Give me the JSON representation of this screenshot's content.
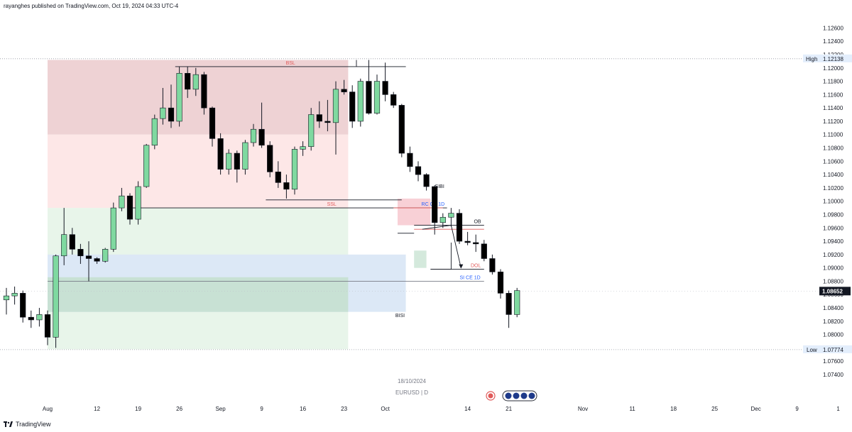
{
  "header": {
    "published": "rayanghes published on TradingView.com, Oct 19, 2024 04:33 UTC-4"
  },
  "footer": {
    "brand": "TradingView",
    "logo_icon": "tradingview-logo-icon"
  },
  "watermark": {
    "date": "18/10/2024",
    "symbol": "EURUSD | D"
  },
  "colors": {
    "up": "#7fd9a0",
    "down": "#000000",
    "price_badge": "#131722",
    "premium_dark": "#eed2d4",
    "premium_light": "#fde7e7",
    "discount_light": "#e8f5ea",
    "discount_dark": "#d8ece0",
    "bisi": "#dce8f6"
  },
  "chart_data": {
    "type": "candlestick",
    "symbol": "EURUSD",
    "timeframe": "D",
    "y_axis": {
      "ticks": [
        "1.12600",
        "1.12400",
        "1.12200",
        "1.12000",
        "1.11800",
        "1.11600",
        "1.11400",
        "1.11200",
        "1.11000",
        "1.10800",
        "1.10600",
        "1.10400",
        "1.10200",
        "1.10000",
        "1.09800",
        "1.09600",
        "1.09400",
        "1.09200",
        "1.09000",
        "1.08800",
        "1.08600",
        "1.08400",
        "1.08200",
        "1.08000",
        "1.07800",
        "1.07600",
        "1.07400"
      ],
      "range": [
        1.074,
        1.127
      ]
    },
    "x_axis": {
      "ticks": [
        {
          "label": "Aug",
          "index": 5
        },
        {
          "label": "12",
          "index": 11
        },
        {
          "label": "19",
          "index": 16
        },
        {
          "label": "26",
          "index": 21
        },
        {
          "label": "Sep",
          "index": 26
        },
        {
          "label": "9",
          "index": 31
        },
        {
          "label": "16",
          "index": 36
        },
        {
          "label": "23",
          "index": 41
        },
        {
          "label": "Oct",
          "index": 46
        },
        {
          "label": "14",
          "index": 56
        },
        {
          "label": "21",
          "index": 61
        },
        {
          "label": "Nov",
          "index": 70
        },
        {
          "label": "11",
          "index": 76
        },
        {
          "label": "18",
          "index": 81
        },
        {
          "label": "25",
          "index": 86
        },
        {
          "label": "Dec",
          "index": 91
        },
        {
          "label": "9",
          "index": 96
        },
        {
          "label": "1",
          "index": 101
        }
      ]
    },
    "candles": [
      {
        "o": 1.0852,
        "h": 1.087,
        "l": 1.083,
        "c": 1.0858
      },
      {
        "o": 1.0858,
        "h": 1.0872,
        "l": 1.0845,
        "c": 1.0862
      },
      {
        "o": 1.0862,
        "h": 1.0866,
        "l": 1.0818,
        "c": 1.0826
      },
      {
        "o": 1.0826,
        "h": 1.0836,
        "l": 1.081,
        "c": 1.0822
      },
      {
        "o": 1.0822,
        "h": 1.084,
        "l": 1.0812,
        "c": 1.083
      },
      {
        "o": 1.083,
        "h": 1.0836,
        "l": 1.0784,
        "c": 1.0796
      },
      {
        "o": 1.0796,
        "h": 1.092,
        "l": 1.078,
        "c": 1.0918
      },
      {
        "o": 1.0918,
        "h": 1.099,
        "l": 1.0904,
        "c": 1.095
      },
      {
        "o": 1.095,
        "h": 1.096,
        "l": 1.092,
        "c": 1.0928
      },
      {
        "o": 1.0928,
        "h": 1.0936,
        "l": 1.0906,
        "c": 1.0918
      },
      {
        "o": 1.0918,
        "h": 1.094,
        "l": 1.088,
        "c": 1.0914
      },
      {
        "o": 1.0914,
        "h": 1.0916,
        "l": 1.0906,
        "c": 1.091
      },
      {
        "o": 1.091,
        "h": 1.093,
        "l": 1.0908,
        "c": 1.0928
      },
      {
        "o": 1.0928,
        "h": 1.0998,
        "l": 1.0924,
        "c": 1.099
      },
      {
        "o": 1.099,
        "h": 1.102,
        "l": 1.0985,
        "c": 1.1008
      },
      {
        "o": 1.1008,
        "h": 1.1012,
        "l": 1.0965,
        "c": 1.0973
      },
      {
        "o": 1.0973,
        "h": 1.103,
        "l": 1.0965,
        "c": 1.1022
      },
      {
        "o": 1.1022,
        "h": 1.1086,
        "l": 1.102,
        "c": 1.1084
      },
      {
        "o": 1.1084,
        "h": 1.113,
        "l": 1.1078,
        "c": 1.1124
      },
      {
        "o": 1.1124,
        "h": 1.117,
        "l": 1.1115,
        "c": 1.114
      },
      {
        "o": 1.114,
        "h": 1.1175,
        "l": 1.111,
        "c": 1.112
      },
      {
        "o": 1.112,
        "h": 1.1202,
        "l": 1.1112,
        "c": 1.1192
      },
      {
        "o": 1.1192,
        "h": 1.1202,
        "l": 1.1155,
        "c": 1.1168
      },
      {
        "o": 1.1168,
        "h": 1.12,
        "l": 1.1158,
        "c": 1.119
      },
      {
        "o": 1.119,
        "h": 1.1194,
        "l": 1.113,
        "c": 1.114
      },
      {
        "o": 1.114,
        "h": 1.1142,
        "l": 1.1082,
        "c": 1.1094
      },
      {
        "o": 1.1094,
        "h": 1.1102,
        "l": 1.104,
        "c": 1.1048
      },
      {
        "o": 1.1048,
        "h": 1.1078,
        "l": 1.104,
        "c": 1.1072
      },
      {
        "o": 1.1072,
        "h": 1.1076,
        "l": 1.1028,
        "c": 1.1048
      },
      {
        "o": 1.1048,
        "h": 1.1092,
        "l": 1.104,
        "c": 1.1088
      },
      {
        "o": 1.1088,
        "h": 1.1116,
        "l": 1.1082,
        "c": 1.1108
      },
      {
        "o": 1.1108,
        "h": 1.1148,
        "l": 1.108,
        "c": 1.1084
      },
      {
        "o": 1.1084,
        "h": 1.109,
        "l": 1.1036,
        "c": 1.1044
      },
      {
        "o": 1.1044,
        "h": 1.106,
        "l": 1.102,
        "c": 1.1028
      },
      {
        "o": 1.1028,
        "h": 1.104,
        "l": 1.1004,
        "c": 1.1018
      },
      {
        "o": 1.1018,
        "h": 1.1082,
        "l": 1.101,
        "c": 1.1078
      },
      {
        "o": 1.1078,
        "h": 1.109,
        "l": 1.1068,
        "c": 1.1082
      },
      {
        "o": 1.1082,
        "h": 1.114,
        "l": 1.1076,
        "c": 1.113
      },
      {
        "o": 1.113,
        "h": 1.115,
        "l": 1.111,
        "c": 1.112
      },
      {
        "o": 1.112,
        "h": 1.1152,
        "l": 1.1105,
        "c": 1.1118
      },
      {
        "o": 1.1118,
        "h": 1.118,
        "l": 1.107,
        "c": 1.1168
      },
      {
        "o": 1.1168,
        "h": 1.1182,
        "l": 1.116,
        "c": 1.1164
      },
      {
        "o": 1.1164,
        "h": 1.1174,
        "l": 1.111,
        "c": 1.112
      },
      {
        "o": 1.112,
        "h": 1.1184,
        "l": 1.1112,
        "c": 1.118
      },
      {
        "o": 1.118,
        "h": 1.1212,
        "l": 1.113,
        "c": 1.1132
      },
      {
        "o": 1.1132,
        "h": 1.119,
        "l": 1.113,
        "c": 1.118
      },
      {
        "o": 1.118,
        "h": 1.1208,
        "l": 1.115,
        "c": 1.116
      },
      {
        "o": 1.116,
        "h": 1.1164,
        "l": 1.114,
        "c": 1.1144
      },
      {
        "o": 1.1144,
        "h": 1.1146,
        "l": 1.1066,
        "c": 1.1072
      },
      {
        "o": 1.1072,
        "h": 1.1082,
        "l": 1.1044,
        "c": 1.1052
      },
      {
        "o": 1.1052,
        "h": 1.106,
        "l": 1.103,
        "c": 1.104
      },
      {
        "o": 1.104,
        "h": 1.1042,
        "l": 1.1016,
        "c": 1.1022
      },
      {
        "o": 1.1022,
        "h": 1.1024,
        "l": 1.095,
        "c": 1.0968
      },
      {
        "o": 1.0968,
        "h": 1.0982,
        "l": 1.096,
        "c": 1.0976
      },
      {
        "o": 1.0976,
        "h": 1.099,
        "l": 1.0962,
        "c": 1.0982
      },
      {
        "o": 1.0982,
        "h": 1.0988,
        "l": 1.0936,
        "c": 1.094
      },
      {
        "o": 1.094,
        "h": 1.0954,
        "l": 1.0934,
        "c": 1.0938
      },
      {
        "o": 1.0938,
        "h": 1.095,
        "l": 1.0924,
        "c": 1.0936
      },
      {
        "o": 1.0936,
        "h": 1.0942,
        "l": 1.091,
        "c": 1.0914
      },
      {
        "o": 1.0914,
        "h": 1.092,
        "l": 1.089,
        "c": 1.0894
      },
      {
        "o": 1.0894,
        "h": 1.0898,
        "l": 1.0854,
        "c": 1.0862
      },
      {
        "o": 1.0862,
        "h": 1.0866,
        "l": 1.081,
        "c": 1.083
      },
      {
        "o": 1.083,
        "h": 1.087,
        "l": 1.0826,
        "c": 1.0866
      }
    ],
    "zones": [
      {
        "name": "premium-dark",
        "x1": 5,
        "x2": 41.5,
        "y1": 1.1212,
        "y2": 1.11,
        "color": "#eed2d4"
      },
      {
        "name": "premium-light",
        "x1": 5,
        "x2": 41.5,
        "y1": 1.11,
        "y2": 1.099,
        "color": "#fde7e7"
      },
      {
        "name": "discount-light",
        "x1": 5,
        "x2": 41.5,
        "y1": 1.099,
        "y2": 1.0778,
        "color": "#e8f5ea"
      },
      {
        "name": "bisi-zone",
        "x1": 5,
        "x2": 48.5,
        "y1": 1.092,
        "y2": 1.0834,
        "color": "#dce8f6"
      },
      {
        "name": "discount-dark",
        "x1": 5,
        "x2": 41.5,
        "y1": 1.0886,
        "y2": 1.0834,
        "color": "#c8e1d4"
      },
      {
        "name": "sibi-zone",
        "x1": 47.5,
        "x2": 51.5,
        "y1": 1.1004,
        "y2": 1.0964,
        "color": "#f8d0d6"
      },
      {
        "name": "ob-zone-small",
        "x1": 49.5,
        "x2": 51,
        "y1": 1.0926,
        "y2": 1.09,
        "color": "#d4e9dc"
      }
    ],
    "levels": [
      {
        "name": "bsl-line",
        "x1": 20.5,
        "x2": 48.5,
        "y": 1.1202,
        "label": "BSL",
        "label_x": 34.5,
        "label_color": "#e05a5a",
        "stroke": "#131722"
      },
      {
        "name": "ssl-line",
        "x1": 15,
        "x2": 53.5,
        "y": 1.099,
        "label": "SSL",
        "label_x": 39.5,
        "label_color": "#e05a5a",
        "stroke": "#131722"
      },
      {
        "name": "swing-low-line",
        "x1": 31.5,
        "x2": 48,
        "y": 1.1002,
        "label": "",
        "stroke": "#131722"
      },
      {
        "name": "ob-line",
        "x1": 49.5,
        "x2": 58,
        "y": 1.0964,
        "label": "OB",
        "label_x": 57.2,
        "label_color": "#131722",
        "stroke": "#131722"
      },
      {
        "name": "dol-line",
        "x1": 51.5,
        "x2": 58,
        "y": 1.0898,
        "label": "DOL",
        "label_x": 57,
        "label_color": "#e05a5a",
        "stroke": "#131722"
      },
      {
        "name": "fvg-ce-line",
        "x1": 5,
        "x2": 58,
        "y": 1.088,
        "label": "SI CE 1D",
        "label_x": 56.3,
        "label_color": "#2962ff",
        "stroke": "#787b86"
      },
      {
        "name": "rc-ce-line",
        "x1": 47,
        "x2": 53,
        "y": 1.099,
        "label": "RC CE 1D",
        "label_x": 51.8,
        "label_color": "#2962ff",
        "stroke": "#e05a5a"
      },
      {
        "name": "ob-red-line",
        "x1": 49.5,
        "x2": 58,
        "y": 1.0958,
        "label": "",
        "stroke": "#e05a5a"
      },
      {
        "name": "pullback-line",
        "x1": 47.5,
        "x2": 49.5,
        "y": 1.0952,
        "label": "",
        "stroke": "#131722"
      },
      {
        "name": "low-support-line",
        "x1": 51.5,
        "x2": 54,
        "y": 1.0898,
        "label": "",
        "stroke": "#131722"
      }
    ],
    "annotations": [
      {
        "name": "sibi-label",
        "text": "SIBI",
        "x": 52.6,
        "y": 1.102,
        "color": "#131722"
      },
      {
        "name": "bisi-label",
        "text": "BISI",
        "x": 47.8,
        "y": 1.0826,
        "color": "#131722"
      }
    ],
    "projection": [
      {
        "x": 50.5,
        "y": 1.0958
      },
      {
        "x": 54,
        "y": 1.0964
      },
      {
        "x": 55.2,
        "y": 1.09
      }
    ],
    "high": {
      "label": "High",
      "value": "1.12138",
      "level": 1.12138
    },
    "low": {
      "label": "Low",
      "value": "1.07774",
      "level": 1.07774
    },
    "last_price": {
      "value": "1.08652",
      "level": 1.08652
    }
  }
}
